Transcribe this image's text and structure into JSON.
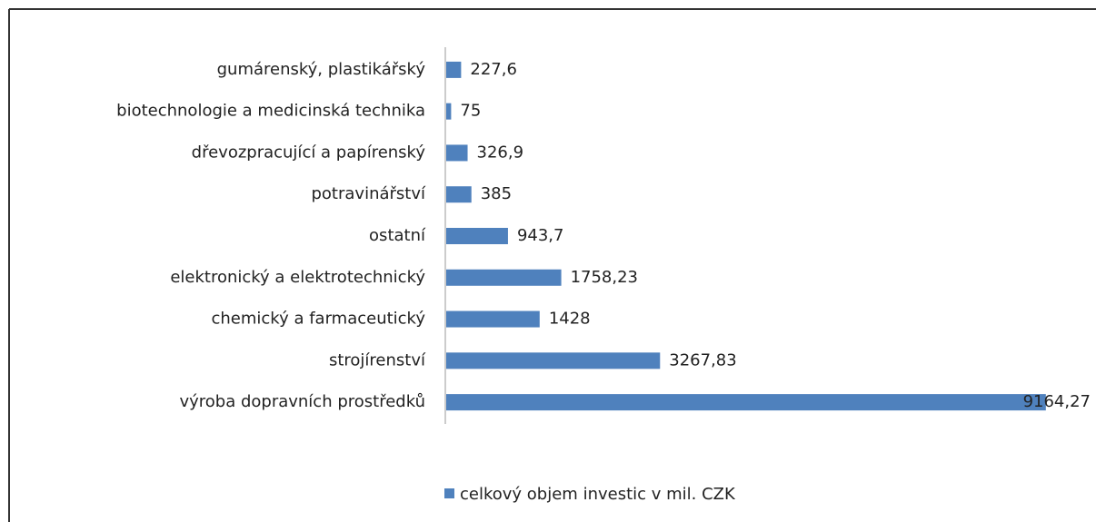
{
  "chart_data": {
    "type": "hbar",
    "categories": [
      "gumárenský, plastikářský",
      "biotechnologie a medicinská technika",
      "dřevozpracující a papírenský",
      "potravinářství",
      "ostatní",
      "elektronický a elektrotechnický",
      "chemický a farmaceutický",
      "strojírenství",
      "výroba dopravních prostředků"
    ],
    "series": [
      {
        "name": "celkový objem investic v mil. CZK",
        "color": "#4f81bd",
        "values": [
          227.6,
          75,
          326.9,
          385,
          943.7,
          1758.23,
          1428,
          3267.83,
          9164.27
        ],
        "value_labels": [
          "227,6",
          "75",
          "326,9",
          "385",
          "943,7",
          "1758,23",
          "1428",
          "3267,83",
          "9164,27"
        ]
      }
    ],
    "xlim": [
      0,
      9500
    ],
    "legend": "bottom"
  }
}
